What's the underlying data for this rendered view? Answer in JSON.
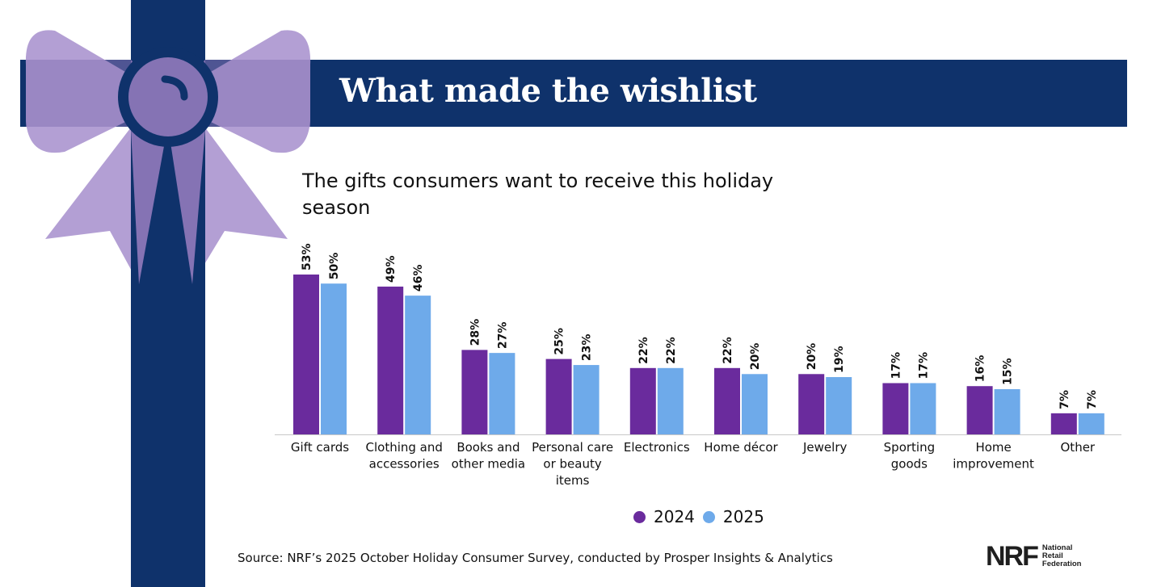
{
  "header": {
    "title": "What made the wishlist"
  },
  "colors": {
    "navy": "#0f326b",
    "bow_light": "#b39fd4",
    "bow_dark": "#8573b4",
    "series_2024": "#6a2b9d",
    "series_2025": "#6eaaea"
  },
  "chart_data": {
    "type": "bar",
    "title": "The gifts consumers want to receive this holiday season",
    "categories": [
      [
        "Gift cards"
      ],
      [
        "Clothing and",
        "accessories"
      ],
      [
        "Books and",
        "other media"
      ],
      [
        "Personal care",
        "or beauty",
        "items"
      ],
      [
        "Electronics"
      ],
      [
        "Home décor"
      ],
      [
        "Jewelry"
      ],
      [
        "Sporting",
        "goods"
      ],
      [
        "Home",
        "improvement"
      ],
      [
        "Other"
      ]
    ],
    "series": [
      {
        "name": "2024",
        "color": "#6a2b9d",
        "values": [
          53,
          49,
          28,
          25,
          22,
          22,
          20,
          17,
          16,
          7
        ]
      },
      {
        "name": "2025",
        "color": "#6eaaea",
        "values": [
          50,
          46,
          27,
          23,
          22,
          20,
          19,
          17,
          15,
          7
        ]
      }
    ],
    "value_suffix": "%",
    "ylim": [
      0,
      53
    ],
    "grid": false,
    "legend": "bottom-center"
  },
  "footer": {
    "source": "Source: NRF’s 2025 October Holiday Consumer Survey, conducted by Prosper Insights & Analytics",
    "logo_mark": "NRF",
    "logo_text": [
      "National",
      "Retail",
      "Federation"
    ]
  }
}
